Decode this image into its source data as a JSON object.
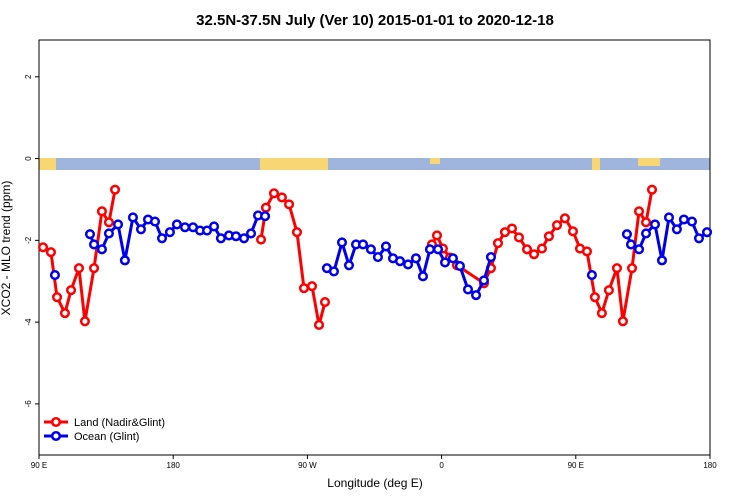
{
  "chart_data": {
    "type": "line",
    "title": "32.5N-37.5N July (Ver 10)   2015-01-01 to 2020-12-18",
    "xlabel": "Longitude (deg E)",
    "ylabel": "XCO2 - MLO trend (ppm)",
    "xlim": [
      90,
      540
    ],
    "xticks": [
      {
        "value": 90,
        "label": "90 E"
      },
      {
        "value": 180,
        "label": "180"
      },
      {
        "value": 270,
        "label": "90 W"
      },
      {
        "value": 360,
        "label": "0"
      },
      {
        "value": 450,
        "label": "90 E"
      },
      {
        "value": 540,
        "label": "180"
      }
    ],
    "ylim": [
      -7.25,
      2.9
    ],
    "yticks": [
      2,
      0,
      -2,
      -4,
      -6
    ],
    "legend": "lower left",
    "series": [
      {
        "name": "Land (Nadir&Glint)",
        "color": "#ff0000",
        "x": [
          92.7,
          98.0,
          102.1,
          107.4,
          111.5,
          116.8,
          120.8,
          126.9,
          132.2,
          136.9,
          141.0,
          null,
          238.9,
          242.2,
          247.6,
          252.9,
          257.7,
          263.0,
          267.7,
          273.1,
          277.8,
          281.8,
          null,
          353.5,
          356.9,
          360.9,
          365.6,
          370.3,
          388.4,
          393.1,
          397.8,
          402.5,
          407.2,
          411.9,
          417.3,
          422.0,
          427.3,
          432.0,
          437.4,
          442.7,
          448.1,
          452.8,
          457.5,
          462.8,
          467.5,
          472.2,
          477.6,
          481.6,
          487.7,
          492.4,
          497.1,
          501.1
        ],
        "values": [
          -2.17,
          -2.29,
          -3.39,
          -3.78,
          -3.22,
          -2.68,
          -3.98,
          -2.68,
          -1.29,
          -1.56,
          -0.76,
          null,
          -1.98,
          -1.2,
          -0.85,
          -0.95,
          -1.12,
          -1.8,
          -3.17,
          -3.12,
          -4.07,
          -3.51,
          null,
          -2.1,
          -1.88,
          -2.2,
          -2.42,
          -2.61,
          -3.05,
          -2.68,
          -2.07,
          -1.8,
          -1.71,
          -1.93,
          -2.22,
          -2.34,
          -2.2,
          -1.9,
          -1.63,
          -1.46,
          -1.78,
          -2.2,
          -2.27,
          -3.39,
          -3.78,
          -3.22,
          -2.68,
          -3.98,
          -2.68,
          -1.29,
          -1.56,
          -0.76
        ]
      },
      {
        "name": "Ocean (Glint)",
        "color": "#0000ee",
        "x": [
          100.7,
          null,
          124.2,
          126.9,
          132.2,
          136.9,
          143.0,
          147.6,
          153.0,
          158.4,
          163.1,
          167.8,
          172.5,
          177.8,
          182.5,
          187.9,
          193.3,
          198.0,
          202.7,
          207.4,
          212.0,
          217.4,
          222.1,
          227.5,
          232.2,
          236.9,
          241.6,
          null,
          283.1,
          287.8,
          293.2,
          297.9,
          302.6,
          307.3,
          312.6,
          317.3,
          322.7,
          327.4,
          332.1,
          337.5,
          342.8,
          347.5,
          352.2,
          357.6,
          362.3,
          367.6,
          372.3,
          377.7,
          383.1,
          388.4,
          393.1,
          null,
          460.8,
          null,
          484.3,
          487.0,
          492.4,
          497.1,
          503.1,
          507.8,
          512.5,
          517.8,
          522.5,
          527.9,
          532.6,
          538.0
        ],
        "values": [
          -2.85,
          null,
          -1.85,
          -2.1,
          -2.22,
          -1.83,
          -1.61,
          -2.49,
          -1.44,
          -1.73,
          -1.49,
          -1.54,
          -1.95,
          -1.8,
          -1.61,
          -1.68,
          -1.68,
          -1.76,
          -1.76,
          -1.66,
          -1.95,
          -1.88,
          -1.9,
          -1.95,
          -1.83,
          -1.39,
          -1.41,
          null,
          -2.68,
          -2.76,
          -2.05,
          -2.61,
          -2.1,
          -2.1,
          -2.22,
          -2.41,
          -2.15,
          -2.44,
          -2.51,
          -2.59,
          -2.44,
          -2.88,
          -2.22,
          -2.22,
          -2.54,
          -2.44,
          -2.63,
          -3.2,
          -3.34,
          -2.98,
          -2.41,
          null,
          -2.85,
          null,
          -1.85,
          -2.1,
          -2.22,
          -1.83,
          -1.61,
          -2.49,
          -1.44,
          -1.73,
          -1.49,
          -1.54,
          -1.95,
          -1.8
        ]
      }
    ]
  }
}
